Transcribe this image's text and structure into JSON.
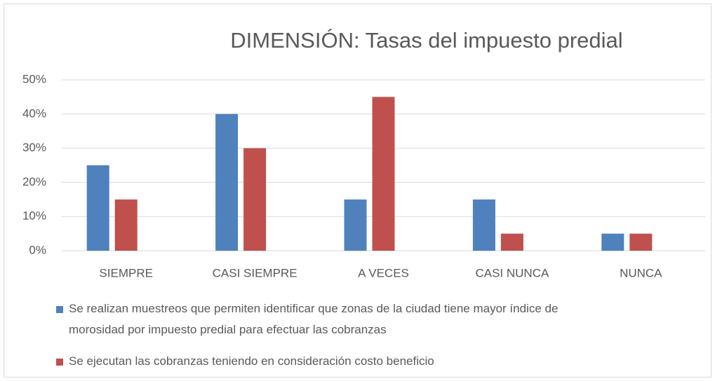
{
  "chart_data": {
    "type": "bar",
    "title": "DIMENSIÓN: Tasas del impuesto predial",
    "categories": [
      "SIEMPRE",
      "CASI SIEMPRE",
      "A VECES",
      "CASI NUNCA",
      "NUNCA"
    ],
    "series": [
      {
        "name": "Se realizan muestreos que permiten identificar que zonas de la ciudad tiene mayor índice de morosidad por impuesto predial para efectuar las cobranzas",
        "color": "#4f81bd",
        "values": [
          25,
          40,
          15,
          15,
          5
        ]
      },
      {
        "name": "Se ejecutan las cobranzas teniendo en consideración costo beneficio",
        "color": "#c0504d",
        "values": [
          15,
          30,
          45,
          5,
          5
        ]
      }
    ],
    "ylim": [
      0,
      50
    ],
    "yticks": [
      {
        "value": 0,
        "label": "0%"
      },
      {
        "value": 10,
        "label": "10%"
      },
      {
        "value": 20,
        "label": "20%"
      },
      {
        "value": 30,
        "label": "30%"
      },
      {
        "value": 40,
        "label": "40%"
      },
      {
        "value": 50,
        "label": "50%"
      }
    ],
    "grid": true,
    "legend": "bottom"
  }
}
